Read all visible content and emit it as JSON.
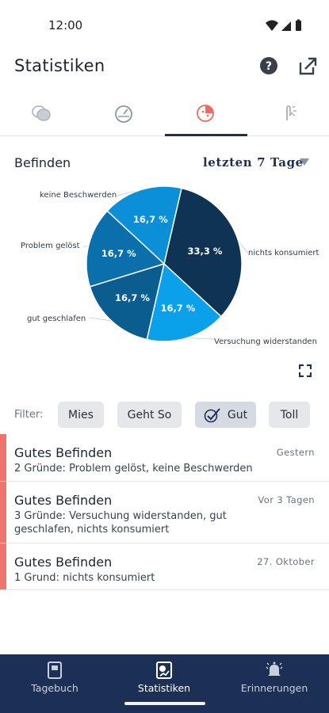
{
  "status_bar": {
    "time": "12:00",
    "icons": [
      "wifi-icon",
      "signal-icon",
      "battery-icon"
    ]
  },
  "app_bar": {
    "title": "Statistiken",
    "actions": [
      "help-icon",
      "share-icon"
    ]
  },
  "tabs": [
    {
      "icon": "chat-bubbles-icon",
      "selected": false
    },
    {
      "icon": "gauge-icon",
      "selected": false
    },
    {
      "icon": "mood-pie-icon",
      "selected": true
    },
    {
      "icon": "hand-gesture-icon",
      "selected": false
    }
  ],
  "section": {
    "title": "Befinden",
    "range_label": "letzten 7 Tage"
  },
  "chart_data": {
    "type": "pie",
    "title": "",
    "slices": [
      {
        "label": "nichts konsumiert",
        "value": 33.3,
        "pct_label": "33,3 %",
        "color": "#0f3352"
      },
      {
        "label": "Versuchung widerstanden",
        "value": 16.7,
        "pct_label": "16,7 %",
        "color": "#0aa0ea"
      },
      {
        "label": "gut geschlafen",
        "value": 16.7,
        "pct_label": "16,7 %",
        "color": "#0b5d8f"
      },
      {
        "label": "Problem gelöst",
        "value": 16.7,
        "pct_label": "16,7 %",
        "color": "#0a6fab"
      },
      {
        "label": "keine Beschwerden",
        "value": 16.7,
        "pct_label": "16,7 %",
        "color": "#0b8fd6"
      }
    ]
  },
  "filter": {
    "label": "Filter:",
    "chips": [
      {
        "label": "Mies",
        "selected": false
      },
      {
        "label": "Geht So",
        "selected": false
      },
      {
        "label": "Gut",
        "selected": true
      },
      {
        "label": "Toll",
        "selected": false
      }
    ]
  },
  "entries": [
    {
      "title": "Gutes Befinden",
      "date": "Gestern",
      "description": "2 Gründe: Problem gelöst, keine Beschwerden",
      "accent": "#f1746c"
    },
    {
      "title": "Gutes Befinden",
      "date": "Vor 3 Tagen",
      "description": "3 Gründe: Versuchung widerstanden, gut geschlafen, nichts konsumiert",
      "accent": "#f1746c"
    },
    {
      "title": "Gutes Befinden",
      "date": "27. Oktober",
      "description": "1 Grund: nichts konsumiert",
      "accent": "#f1746c"
    }
  ],
  "bottom_nav": [
    {
      "label": "Tagebuch",
      "icon": "diary-icon",
      "active": false
    },
    {
      "label": "Statistiken",
      "icon": "statistics-icon",
      "active": true
    },
    {
      "label": "Erinnerungen",
      "icon": "bell-icon",
      "active": false
    }
  ],
  "colors": {
    "brand": "#1c2f55",
    "accent": "#f1746c"
  }
}
